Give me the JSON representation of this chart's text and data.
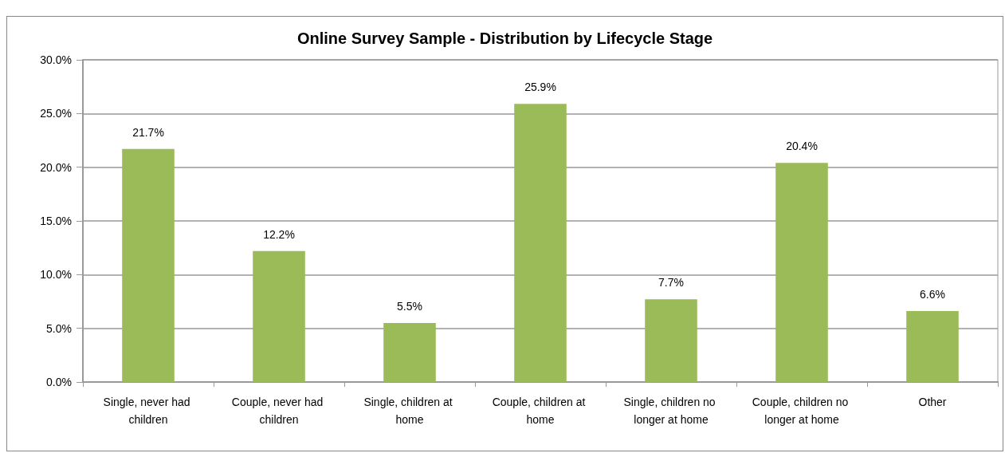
{
  "chart_data": {
    "type": "bar",
    "title": "Online Survey Sample - Distribution by Lifecycle Stage",
    "categories": [
      "Single, never had children",
      "Couple, never had children",
      "Single, children at home",
      "Couple, children at home",
      "Single, children no longer at home",
      "Couple, children no longer at home",
      "Other"
    ],
    "values": [
      21.7,
      12.2,
      5.5,
      25.9,
      7.7,
      20.4,
      6.6
    ],
    "value_labels": [
      "21.7%",
      "12.2%",
      "5.5%",
      "25.9%",
      "7.7%",
      "20.4%",
      "6.6%"
    ],
    "color": "#9bbb59",
    "ylim": [
      0,
      30
    ],
    "yticks": [
      {
        "value": 0,
        "label": "0.0%"
      },
      {
        "value": 5,
        "label": "5.0%"
      },
      {
        "value": 10,
        "label": "10.0%"
      },
      {
        "value": 15,
        "label": "15.0%"
      },
      {
        "value": 20,
        "label": "20.0%"
      },
      {
        "value": 25,
        "label": "25.0%"
      },
      {
        "value": 30,
        "label": "30.0%"
      }
    ],
    "grid": "y"
  }
}
